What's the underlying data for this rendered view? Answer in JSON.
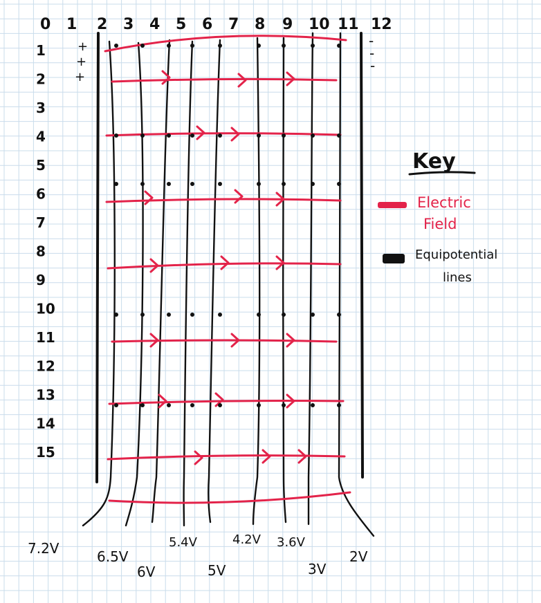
{
  "colors": {
    "grid": "#c9dceb",
    "ink": "#111111",
    "field": "#e3234a",
    "paper": "#ffffff"
  },
  "top_ruler": [
    "0",
    "1",
    "2",
    "3",
    "4",
    "5",
    "6",
    "7",
    "8",
    "9",
    "10",
    "11",
    "12"
  ],
  "left_ruler": [
    "1",
    "2",
    "3",
    "4",
    "5",
    "6",
    "7",
    "8",
    "9",
    "10",
    "11",
    "12",
    "13",
    "14",
    "15"
  ],
  "charges": {
    "positive": [
      "+",
      "+",
      "+"
    ],
    "negative": [
      "-",
      "-",
      "-"
    ]
  },
  "voltage_labels": [
    "7.2V",
    "6.5V",
    "6V",
    "5.4V",
    "5V",
    "4.2V",
    "3.6V",
    "3V",
    "2V"
  ],
  "key": {
    "title": "Key",
    "items": [
      {
        "label_lines": [
          "Electric",
          "Field"
        ],
        "color": "#e3234a",
        "icon": "red-swatch"
      },
      {
        "label_lines": [
          "Equipotential",
          "lines"
        ],
        "color": "#111111",
        "icon": "black-swatch"
      }
    ]
  }
}
